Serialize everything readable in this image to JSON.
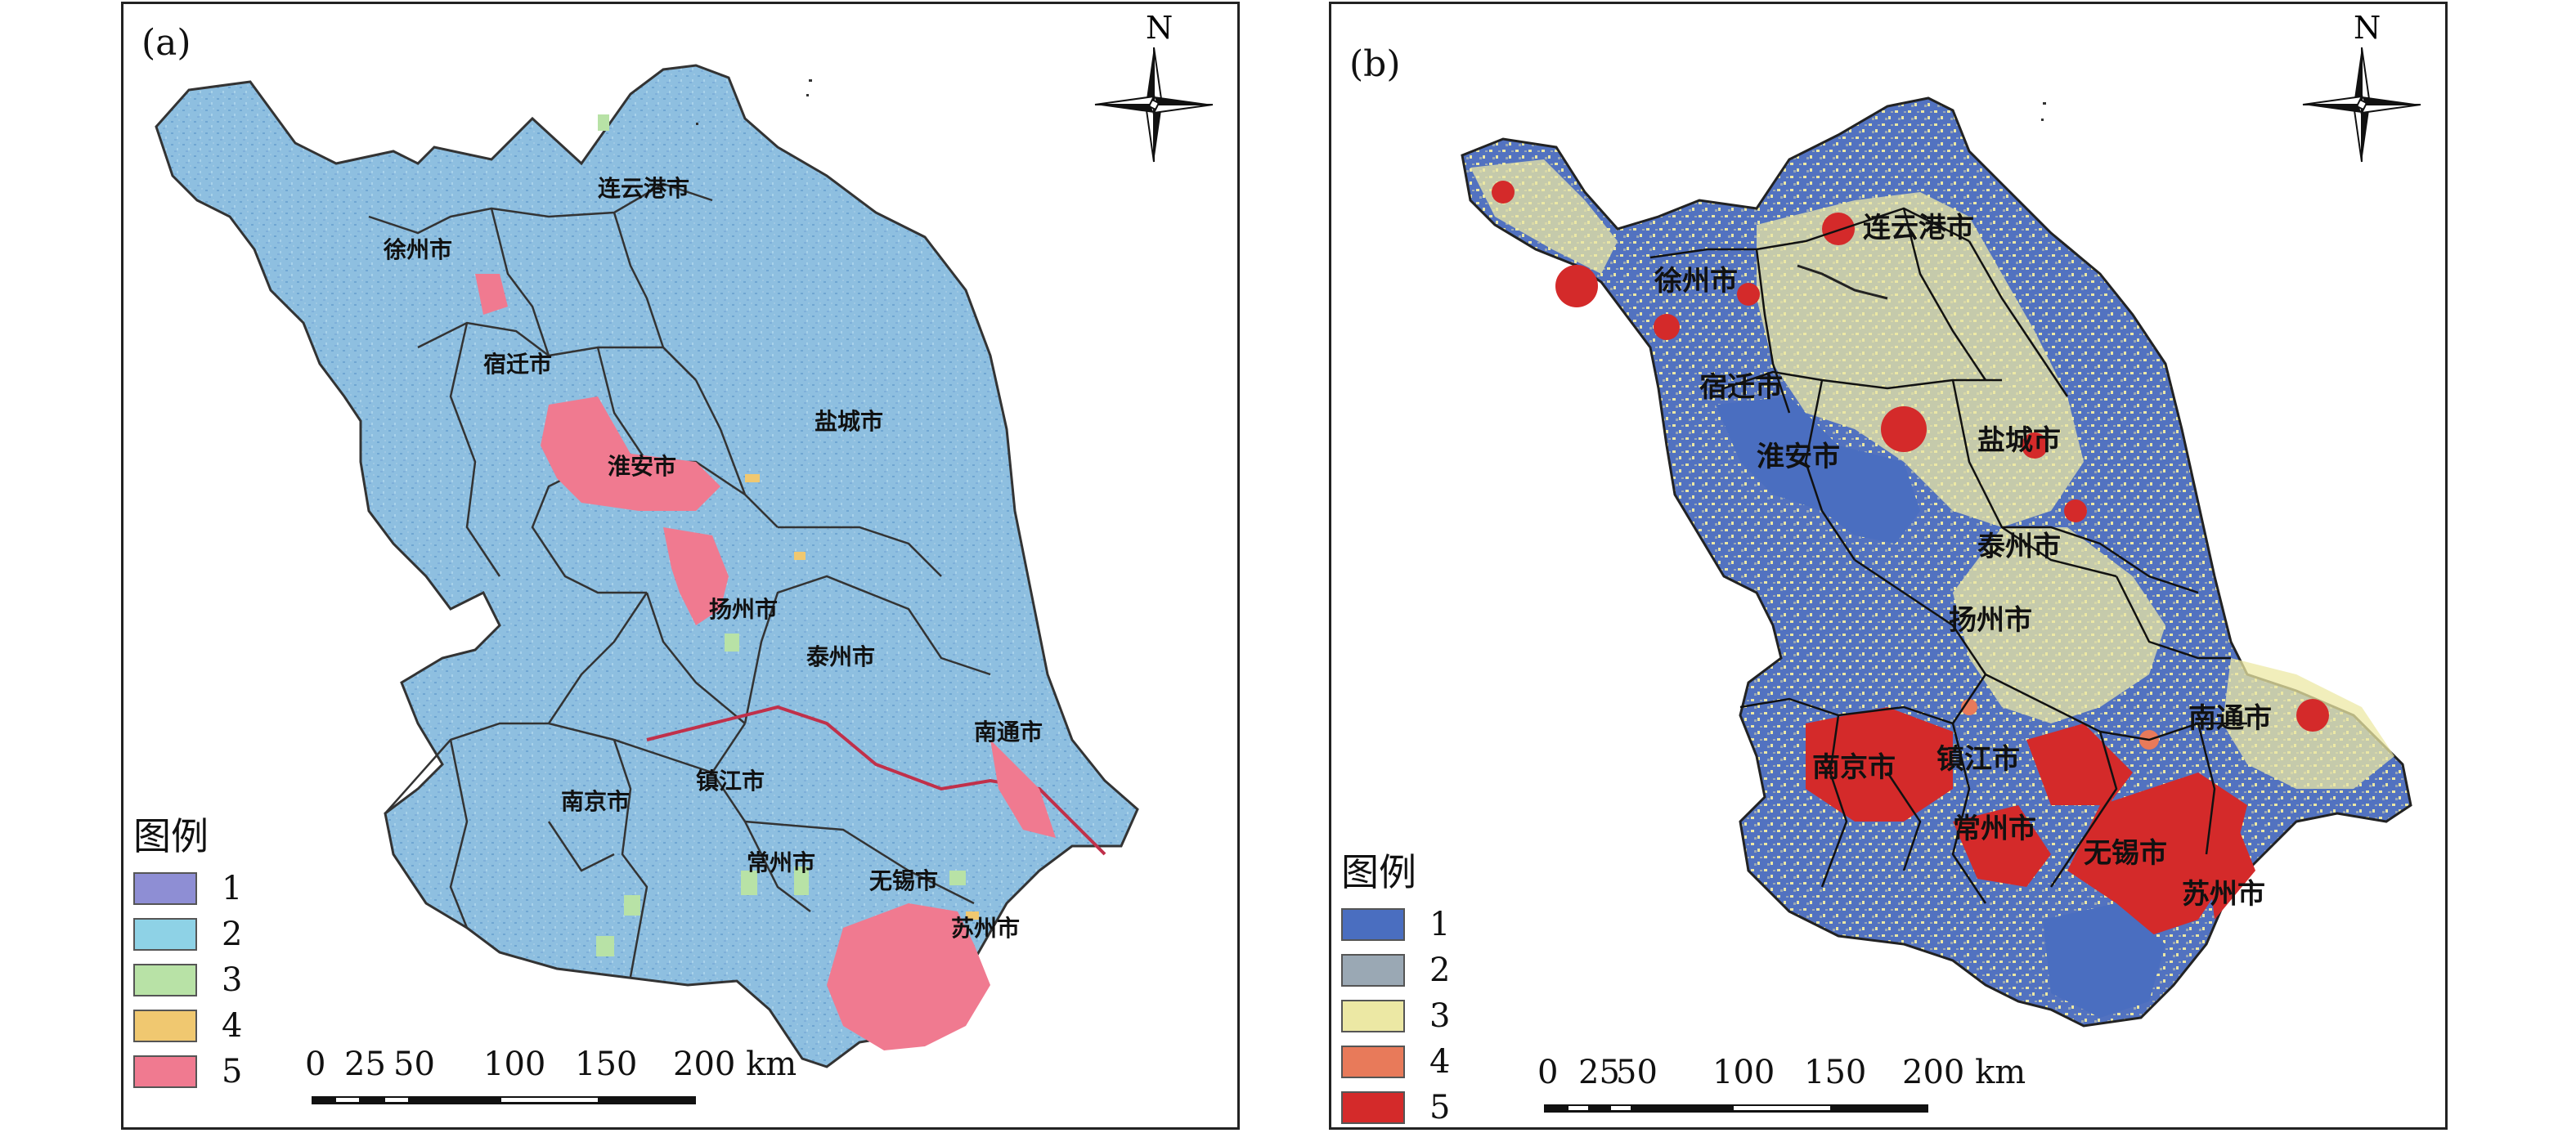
{
  "panels": [
    {
      "label": "(a)",
      "cities": [
        "连云港市",
        "徐州市",
        "宿迁市",
        "盐城市",
        "淮安市",
        "扬州市",
        "泰州市",
        "南通市",
        "镇江市",
        "南京市",
        "常州市",
        "无锡市",
        "苏州市"
      ],
      "legend": {
        "title": "图例",
        "items": [
          {
            "label": "1",
            "color": "#8e8ed4"
          },
          {
            "label": "2",
            "color": "#8ed2e6"
          },
          {
            "label": "3",
            "color": "#b8e2a6"
          },
          {
            "label": "4",
            "color": "#f0c870"
          },
          {
            "label": "5",
            "color": "#f07a90"
          }
        ]
      },
      "base_color": "#8ebfe0",
      "scale": {
        "ticks": [
          "0",
          "25",
          "50",
          "100",
          "150",
          "200 km"
        ]
      },
      "north": "N"
    },
    {
      "label": "(b)",
      "cities": [
        "连云港市",
        "徐州市",
        "宿迁市",
        "盐城市",
        "淮安市",
        "泰州市",
        "扬州市",
        "南通市",
        "镇江市",
        "南京市",
        "常州市",
        "无锡市",
        "苏州市"
      ],
      "legend": {
        "title": "图例",
        "items": [
          {
            "label": "1",
            "color": "#4a6ec0"
          },
          {
            "label": "2",
            "color": "#9aa8b4"
          },
          {
            "label": "3",
            "color": "#ece8a4"
          },
          {
            "label": "4",
            "color": "#e87a5a"
          },
          {
            "label": "5",
            "color": "#d42a2a"
          }
        ]
      },
      "base_color": "#5272c0",
      "scale": {
        "ticks": [
          "0",
          "25",
          "50",
          "100",
          "150",
          "200 km"
        ]
      },
      "north": "N"
    }
  ]
}
